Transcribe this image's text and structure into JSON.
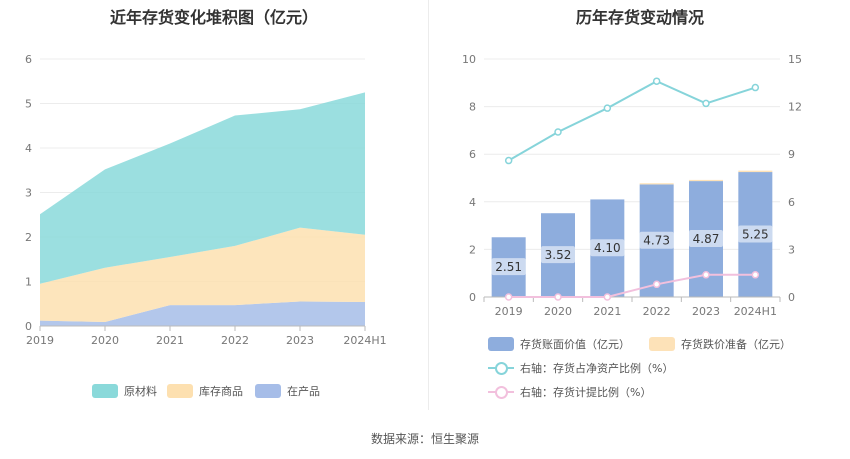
{
  "left_chart": {
    "title": "近年存货变化堆积图（亿元）",
    "legend": [
      "原材料",
      "库存商品",
      "在产品"
    ],
    "colors": {
      "raw": "#8ad9da",
      "goods": "#fde0b0",
      "wip": "#a6bde8"
    }
  },
  "right_chart": {
    "title": "历年存货变动情况",
    "legend": {
      "book": "存货账面价值（亿元）",
      "reserve": "存货跌价准备（亿元）",
      "ratio_net": "右轴：存货占净资产比例（%）",
      "ratio_prov": "右轴：存货计提比例（%）"
    },
    "colors": {
      "bar": "#8eaddd",
      "reserve": "#fde2b8",
      "line1": "#86d4da",
      "line2": "#f2c0dd"
    }
  },
  "footer": "数据来源：恒生聚源",
  "chart_data": [
    {
      "type": "area",
      "title": "近年存货变化堆积图（亿元）",
      "x": [
        "2019",
        "2020",
        "2021",
        "2022",
        "2023",
        "2024H1"
      ],
      "ylim": [
        0,
        6
      ],
      "yticks": [
        0,
        1,
        2,
        3,
        4,
        5,
        6
      ],
      "stacked": true,
      "series": [
        {
          "name": "在产品",
          "values": [
            0.12,
            0.09,
            0.47,
            0.47,
            0.55,
            0.54
          ]
        },
        {
          "name": "库存商品",
          "values": [
            0.83,
            1.22,
            1.08,
            1.33,
            1.66,
            1.51
          ]
        },
        {
          "name": "原材料",
          "values": [
            1.56,
            2.21,
            2.55,
            2.93,
            2.66,
            3.2
          ]
        }
      ],
      "legend_position": "bottom"
    },
    {
      "type": "bar",
      "title": "历年存货变动情况",
      "categories": [
        "2019",
        "2020",
        "2021",
        "2022",
        "2023",
        "2024H1"
      ],
      "ylim": [
        0,
        10
      ],
      "yticks": [
        0,
        2,
        4,
        6,
        8,
        10
      ],
      "y2lim": [
        0,
        15
      ],
      "y2ticks": [
        0,
        3,
        6,
        9,
        12,
        15
      ],
      "series": [
        {
          "name": "存货账面价值（亿元）",
          "values": [
            2.51,
            3.52,
            4.1,
            4.73,
            4.87,
            5.25
          ],
          "labels": [
            "2.51",
            "3.52",
            "4.10",
            "4.73",
            "4.87",
            "5.25"
          ]
        },
        {
          "name": "存货跌价准备（亿元）",
          "values": [
            0,
            0,
            0,
            0.05,
            0.05,
            0.06
          ]
        },
        {
          "name": "右轴：存货占净资产比例（%）",
          "type": "line",
          "axis": "right",
          "values": [
            8.6,
            10.4,
            11.9,
            13.6,
            12.2,
            13.2
          ]
        },
        {
          "name": "右轴：存货计提比例（%）",
          "type": "line",
          "axis": "right",
          "values": [
            0,
            0,
            0,
            0.8,
            1.4,
            1.4
          ]
        }
      ],
      "legend_position": "bottom"
    }
  ]
}
